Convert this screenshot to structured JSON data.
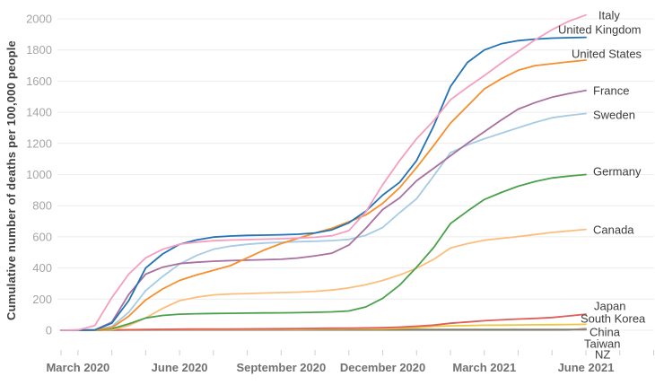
{
  "chart_data": {
    "type": "line",
    "title": "",
    "ylabel": "Cumulative number of deaths per 100,000 people",
    "xlabel": "",
    "ylim": [
      0,
      2050
    ],
    "yticks": [
      0,
      200,
      400,
      600,
      800,
      1000,
      1200,
      1400,
      1600,
      1800,
      2000
    ],
    "xtick_labels": [
      "March 2020",
      "June 2020",
      "September 2020",
      "December 2020",
      "March 2021",
      "June 2021"
    ],
    "grid": true,
    "legend_position": "right-end-of-line-labels",
    "x_dates_semimonthly": [
      "2020-02-15",
      "2020-03-01",
      "2020-03-15",
      "2020-04-01",
      "2020-04-15",
      "2020-05-01",
      "2020-05-15",
      "2020-06-01",
      "2020-06-15",
      "2020-07-01",
      "2020-07-15",
      "2020-08-01",
      "2020-08-15",
      "2020-09-01",
      "2020-09-15",
      "2020-10-01",
      "2020-10-15",
      "2020-11-01",
      "2020-11-15",
      "2020-12-01",
      "2020-12-15",
      "2021-01-01",
      "2021-01-15",
      "2021-02-01",
      "2021-02-15",
      "2021-03-01",
      "2021-03-15",
      "2021-04-01",
      "2021-04-15",
      "2021-05-01",
      "2021-05-15",
      "2021-06-01"
    ],
    "series": [
      {
        "name": "Italy",
        "color": "#f59ec0",
        "values": [
          0,
          1,
          30,
          210,
          360,
          465,
          520,
          553,
          566,
          575,
          579,
          582,
          585,
          588,
          592,
          597,
          607,
          640,
          760,
          935,
          1090,
          1230,
          1345,
          1480,
          1560,
          1635,
          1715,
          1790,
          1865,
          1930,
          1985,
          2025
        ]
      },
      {
        "name": "United Kingdom",
        "color": "#2273b5",
        "values": [
          0,
          0,
          2,
          45,
          190,
          400,
          490,
          552,
          580,
          598,
          605,
          609,
          611,
          613,
          617,
          625,
          645,
          690,
          765,
          868,
          950,
          1090,
          1310,
          1565,
          1720,
          1800,
          1840,
          1860,
          1870,
          1876,
          1879,
          1881
        ]
      },
      {
        "name": "United States",
        "color": "#f68f2c",
        "values": [
          0,
          0,
          2,
          16,
          90,
          195,
          265,
          320,
          355,
          385,
          415,
          465,
          515,
          557,
          590,
          625,
          655,
          697,
          740,
          815,
          915,
          1045,
          1185,
          1330,
          1440,
          1550,
          1615,
          1670,
          1700,
          1712,
          1724,
          1735
        ]
      },
      {
        "name": "France",
        "color": "#a9709f",
        "values": [
          0,
          0,
          2,
          52,
          230,
          360,
          405,
          428,
          437,
          443,
          447,
          450,
          453,
          456,
          464,
          478,
          495,
          547,
          655,
          775,
          850,
          960,
          1040,
          1120,
          1200,
          1275,
          1350,
          1420,
          1462,
          1497,
          1520,
          1540
        ]
      },
      {
        "name": "Sweden",
        "color": "#a5cbe5",
        "values": [
          0,
          0,
          1,
          24,
          115,
          255,
          345,
          425,
          480,
          520,
          540,
          552,
          560,
          565,
          569,
          572,
          576,
          583,
          610,
          660,
          755,
          845,
          990,
          1140,
          1190,
          1230,
          1265,
          1300,
          1335,
          1365,
          1380,
          1392
        ]
      },
      {
        "name": "Germany",
        "color": "#4ba14b",
        "values": [
          0,
          0,
          0,
          9,
          41,
          79,
          95,
          103,
          106,
          108,
          109,
          110,
          111,
          112,
          113,
          115,
          118,
          124,
          150,
          205,
          290,
          405,
          530,
          685,
          765,
          840,
          885,
          925,
          955,
          978,
          990,
          1000
        ]
      },
      {
        "name": "Canada",
        "color": "#fcbe7d",
        "values": [
          0,
          0,
          0,
          3,
          30,
          79,
          140,
          190,
          212,
          227,
          233,
          236,
          239,
          242,
          245,
          250,
          258,
          272,
          293,
          320,
          355,
          398,
          455,
          528,
          556,
          578,
          590,
          602,
          615,
          628,
          638,
          648
        ]
      },
      {
        "name": "Japan",
        "color": "#dd5e5a",
        "values": [
          0,
          0,
          0,
          1,
          3,
          4,
          6,
          7,
          7.5,
          8,
          8,
          8.5,
          9,
          10,
          11,
          12,
          13,
          14,
          15,
          17,
          20,
          26,
          33,
          45,
          53,
          61,
          67,
          72,
          76,
          82,
          92,
          103
        ]
      },
      {
        "name": "South Korea",
        "color": "#eec73c",
        "values": [
          0,
          0.3,
          1.5,
          3,
          4,
          5,
          5.2,
          5.3,
          5.4,
          5.5,
          5.7,
          5.9,
          6.1,
          6.4,
          7,
          8,
          8.5,
          9,
          9.5,
          10,
          12,
          17,
          25,
          28,
          30,
          32,
          33,
          34,
          35,
          36,
          37,
          38
        ]
      },
      {
        "name": "China",
        "color": "#867a6c",
        "values": [
          0.2,
          2,
          2.3,
          2.4,
          3.3,
          3.3,
          3.3,
          3.3,
          3.3,
          3.3,
          3.3,
          3.3,
          3.3,
          3.3,
          3.3,
          3.3,
          3.3,
          3.3,
          3.3,
          3.3,
          3.3,
          3.3,
          3.4,
          3.4,
          3.4,
          3.4,
          3.4,
          3.4,
          3.4,
          3.4,
          3.4,
          3.4
        ]
      },
      {
        "name": "Taiwan",
        "color": "#b7afa9",
        "values": [
          0,
          0,
          0,
          0.2,
          0.3,
          0.3,
          0.3,
          0.3,
          0.3,
          0.3,
          0.3,
          0.3,
          0.3,
          0.3,
          0.3,
          0.3,
          0.3,
          0.3,
          0.3,
          0.3,
          0.3,
          0.4,
          0.4,
          0.4,
          0.4,
          0.4,
          0.4,
          0.5,
          0.5,
          0.5,
          2,
          12
        ]
      },
      {
        "name": "NZ",
        "color": "#6faaa6",
        "values": [
          0,
          0,
          0,
          1,
          3,
          4.2,
          4.4,
          4.4,
          4.4,
          4.4,
          4.4,
          4.4,
          4.4,
          4.5,
          4.5,
          5,
          5,
          5,
          5,
          5,
          5,
          5,
          5.2,
          5.2,
          5.2,
          5.2,
          5.4,
          5.4,
          5.4,
          5.4,
          5.4,
          5.4
        ]
      }
    ]
  }
}
